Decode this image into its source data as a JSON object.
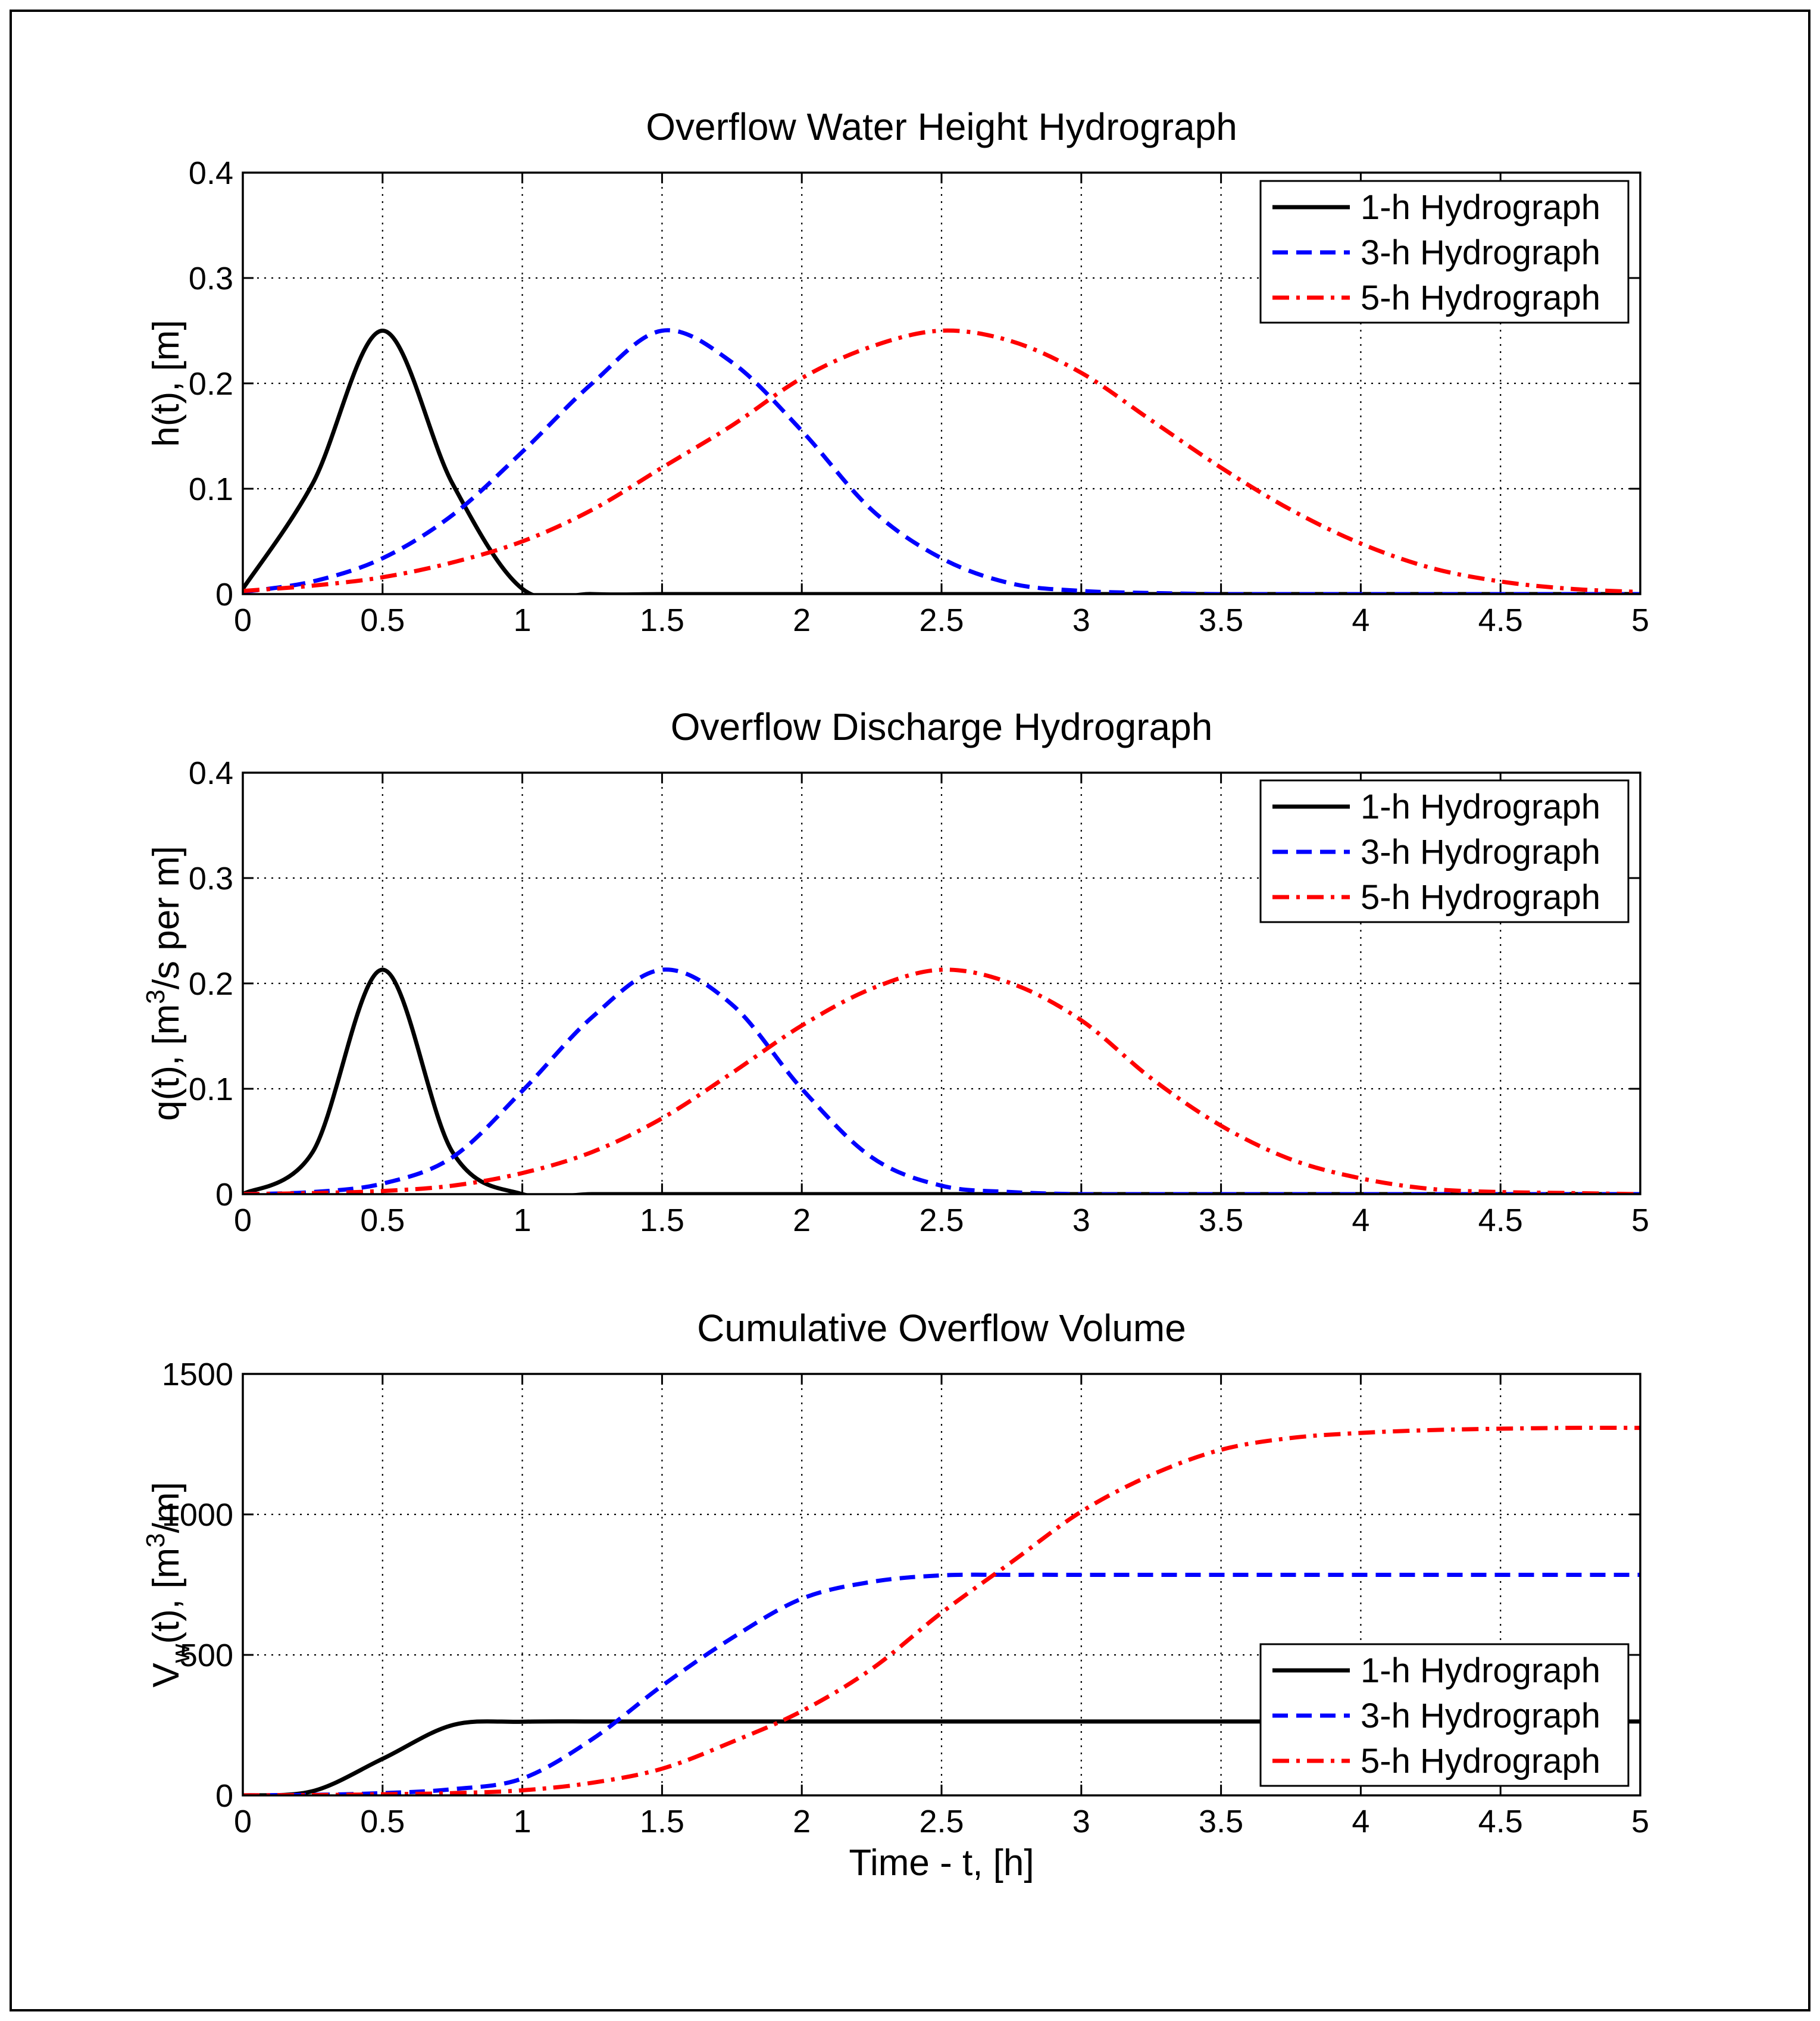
{
  "chart_data": [
    {
      "type": "line",
      "title": "Overflow Water Height Hydrograph",
      "xlabel": "",
      "ylabel": "h(t),  [m]",
      "xlim": [
        0,
        5
      ],
      "ylim": [
        0,
        0.4
      ],
      "xticks": [
        "0",
        "0.5",
        "1",
        "1.5",
        "2",
        "2.5",
        "3",
        "3.5",
        "4",
        "4.5",
        "5"
      ],
      "yticks": [
        "0",
        "0.1",
        "0.2",
        "0.3",
        "0.4"
      ],
      "grid": true,
      "legend_position": "top-right",
      "x": [
        0,
        0.25,
        0.5,
        0.75,
        1,
        1.25,
        1.5,
        1.75,
        2,
        2.25,
        2.5,
        2.75,
        3,
        3.25,
        3.5,
        3.75,
        4,
        4.25,
        4.5,
        4.75,
        5
      ],
      "series": [
        {
          "name": "1-h Hydrograph",
          "style": "solid",
          "color": "#000000",
          "values": [
            0.005,
            0.105,
            0.25,
            0.105,
            0.005,
            0,
            0,
            0,
            0,
            0,
            0,
            0,
            0,
            0,
            0,
            0,
            0,
            0,
            0,
            0,
            0
          ]
        },
        {
          "name": "3-h Hydrograph",
          "style": "dashed",
          "color": "#0000ff",
          "values": [
            0.002,
            0.012,
            0.034,
            0.075,
            0.135,
            0.2,
            0.25,
            0.22,
            0.155,
            0.08,
            0.034,
            0.01,
            0.003,
            0.001,
            0,
            0,
            0,
            0,
            0,
            0,
            0
          ]
        },
        {
          "name": "5-h Hydrograph",
          "style": "dashdot",
          "color": "#ff0000",
          "values": [
            0.003,
            0.008,
            0.016,
            0.03,
            0.05,
            0.08,
            0.12,
            0.16,
            0.205,
            0.235,
            0.25,
            0.24,
            0.21,
            0.165,
            0.12,
            0.08,
            0.048,
            0.025,
            0.012,
            0.005,
            0.002
          ]
        }
      ]
    },
    {
      "type": "line",
      "title": "Overflow Discharge Hydrograph",
      "xlabel": "",
      "ylabel": "q(t),  [m3/s per m]",
      "ylabel_parts": {
        "pre": "q(t),  [m",
        "sup": "3",
        "post": "/s per m]"
      },
      "xlim": [
        0,
        5
      ],
      "ylim": [
        0,
        0.4
      ],
      "xticks": [
        "0",
        "0.5",
        "1",
        "1.5",
        "2",
        "2.5",
        "3",
        "3.5",
        "4",
        "4.5",
        "5"
      ],
      "yticks": [
        "0",
        "0.1",
        "0.2",
        "0.3",
        "0.4"
      ],
      "grid": true,
      "legend_position": "top-right",
      "x": [
        0,
        0.25,
        0.5,
        0.75,
        1,
        1.25,
        1.5,
        1.75,
        2,
        2.25,
        2.5,
        2.75,
        3,
        3.25,
        3.5,
        3.75,
        4,
        4.25,
        4.5,
        4.75,
        5
      ],
      "series": [
        {
          "name": "1-h Hydrograph",
          "style": "solid",
          "color": "#000000",
          "values": [
            0,
            0.04,
            0.213,
            0.04,
            0,
            0,
            0,
            0,
            0,
            0,
            0,
            0,
            0,
            0,
            0,
            0,
            0,
            0,
            0,
            0,
            0
          ]
        },
        {
          "name": "3-h Hydrograph",
          "style": "dashed",
          "color": "#0000ff",
          "values": [
            0,
            0.002,
            0.01,
            0.035,
            0.098,
            0.168,
            0.213,
            0.18,
            0.1,
            0.035,
            0.008,
            0.002,
            0,
            0,
            0,
            0,
            0,
            0,
            0,
            0,
            0
          ]
        },
        {
          "name": "5-h Hydrograph",
          "style": "dashdot",
          "color": "#ff0000",
          "values": [
            0,
            0.001,
            0.003,
            0.008,
            0.02,
            0.04,
            0.072,
            0.115,
            0.16,
            0.195,
            0.213,
            0.2,
            0.165,
            0.11,
            0.065,
            0.033,
            0.015,
            0.005,
            0.002,
            0.001,
            0
          ]
        }
      ]
    },
    {
      "type": "line",
      "title": "Cumulative Overflow Volume",
      "xlabel": "Time - t,  [h]",
      "ylabel": "Vw(t),  [m3/m]",
      "ylabel_parts": {
        "pre": "V",
        "sub": "w",
        "mid": "(t),  [m",
        "sup": "3",
        "post": "/m]"
      },
      "xlim": [
        0,
        5
      ],
      "ylim": [
        0,
        1500
      ],
      "xticks": [
        "0",
        "0.5",
        "1",
        "1.5",
        "2",
        "2.5",
        "3",
        "3.5",
        "4",
        "4.5",
        "5"
      ],
      "yticks": [
        "0",
        "500",
        "1000",
        "1500"
      ],
      "grid": true,
      "legend_position": "bottom-right",
      "x": [
        0,
        0.25,
        0.5,
        0.75,
        1,
        1.25,
        1.5,
        1.75,
        2,
        2.25,
        2.5,
        2.75,
        3,
        3.25,
        3.5,
        3.75,
        4,
        4.25,
        4.5,
        4.75,
        5
      ],
      "series": [
        {
          "name": "1-h Hydrograph",
          "style": "solid",
          "color": "#000000",
          "values": [
            0,
            15,
            130,
            250,
            262,
            263,
            263,
            263,
            263,
            263,
            263,
            263,
            263,
            263,
            263,
            263,
            263,
            263,
            263,
            263,
            263
          ]
        },
        {
          "name": "3-h Hydrograph",
          "style": "dashed",
          "color": "#0000ff",
          "values": [
            0,
            2,
            8,
            22,
            60,
            200,
            390,
            560,
            700,
            760,
            783,
            785,
            785,
            785,
            785,
            785,
            785,
            785,
            785,
            785,
            785
          ]
        },
        {
          "name": "5-h Hydrograph",
          "style": "dashdot",
          "color": "#ff0000",
          "values": [
            0,
            1,
            4,
            8,
            18,
            45,
            95,
            190,
            300,
            450,
            650,
            830,
            1010,
            1140,
            1230,
            1272,
            1290,
            1300,
            1305,
            1308,
            1308
          ]
        }
      ]
    }
  ]
}
